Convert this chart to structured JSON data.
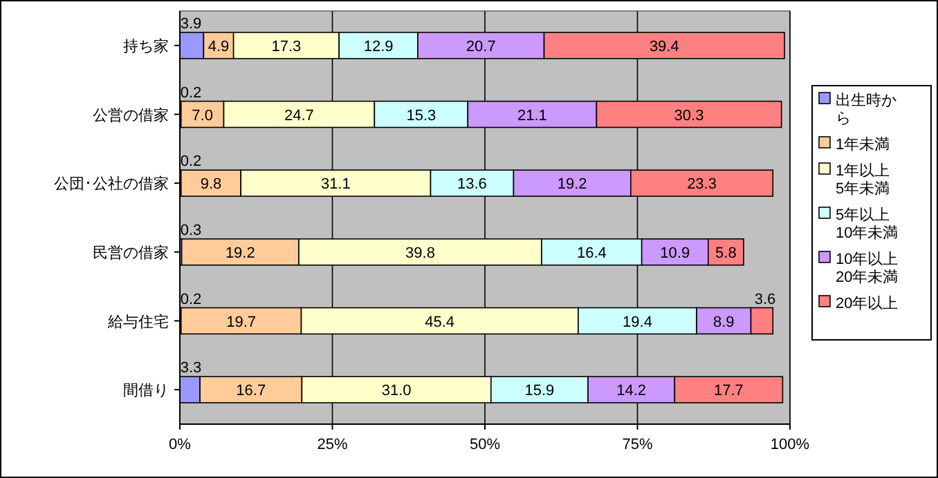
{
  "chart_data": {
    "type": "bar",
    "orientation": "horizontal",
    "stacked": true,
    "categories": [
      "持ち家",
      "公営の借家",
      "公団･公社の借家",
      "民営の借家",
      "給与住宅",
      "間借り"
    ],
    "series": [
      {
        "name": "出生時から",
        "color": "#9999ff",
        "values": [
          3.9,
          0.2,
          0.2,
          0.3,
          0.2,
          3.3
        ],
        "value_labels": [
          "3.9",
          "0.2",
          "0.2",
          "0.3",
          "0.2",
          "3.3"
        ]
      },
      {
        "name": "1年未満",
        "color": "#ffcc99",
        "values": [
          4.9,
          7.0,
          9.8,
          19.2,
          19.7,
          16.7
        ],
        "value_labels": [
          "4.9",
          "7.0",
          "9.8",
          "19.2",
          "19.7",
          "16.7"
        ]
      },
      {
        "name": "1年以上5年未満",
        "color": "#ffffcc",
        "values": [
          17.3,
          24.7,
          31.1,
          39.8,
          45.4,
          31.0
        ],
        "value_labels": [
          "17.3",
          "24.7",
          "31.1",
          "39.8",
          "45.4",
          "31.0"
        ]
      },
      {
        "name": "5年以上10年未満",
        "color": "#ccffff",
        "values": [
          12.9,
          15.3,
          13.6,
          16.4,
          19.4,
          15.9
        ],
        "value_labels": [
          "12.9",
          "15.3",
          "13.6",
          "16.4",
          "19.4",
          "15.9"
        ]
      },
      {
        "name": "10年以上20年未満",
        "color": "#cc99ff",
        "values": [
          20.7,
          21.1,
          19.2,
          10.9,
          8.9,
          14.2
        ],
        "value_labels": [
          "20.7",
          "21.1",
          "19.2",
          "10.9",
          "8.9",
          "14.2"
        ]
      },
      {
        "name": "20年以上",
        "color": "#ff8080",
        "values": [
          39.4,
          30.3,
          23.3,
          5.8,
          3.6,
          17.7
        ],
        "value_labels": [
          "39.4",
          "30.3",
          "23.3",
          "5.8",
          "3.6",
          "17.7"
        ]
      }
    ],
    "xlim": [
      0,
      100
    ],
    "xticks": [
      {
        "value": 0,
        "label": "0%"
      },
      {
        "value": 25,
        "label": "25%"
      },
      {
        "value": 50,
        "label": "50%"
      },
      {
        "value": 75,
        "label": "75%"
      },
      {
        "value": 100,
        "label": "100%"
      }
    ],
    "grid": "x",
    "legend": "right"
  }
}
